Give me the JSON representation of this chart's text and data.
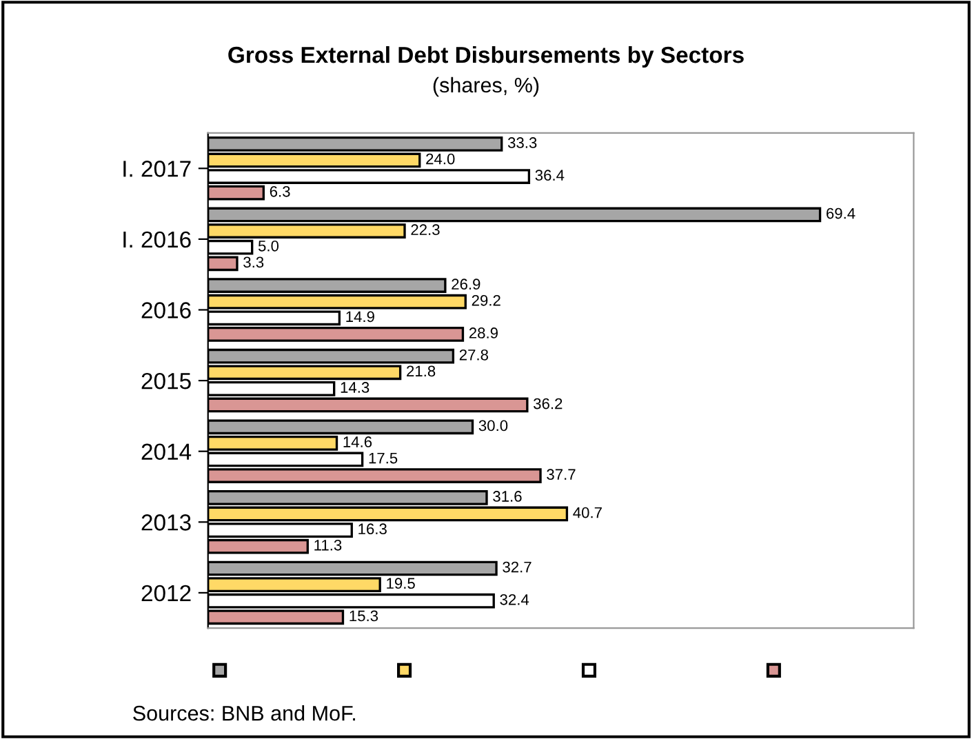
{
  "chart_data": {
    "type": "bar",
    "orientation": "horizontal",
    "title": "Gross External Debt Disbursements by Sectors",
    "subtitle": "(shares, %)",
    "categories": [
      "I. 2017",
      "I. 2016",
      "2016",
      "2015",
      "2014",
      "2013",
      "2012"
    ],
    "series": [
      {
        "color": "#a6a6a6",
        "values": [
          33.3,
          69.4,
          26.9,
          27.8,
          30.0,
          31.6,
          32.7
        ],
        "value_labels": [
          "33.3",
          "69.4",
          "26.9",
          "27.8",
          "30.0",
          "31.6",
          "32.7"
        ]
      },
      {
        "color": "#ffd966",
        "values": [
          24.0,
          22.3,
          29.2,
          21.8,
          14.6,
          40.7,
          19.5
        ],
        "value_labels": [
          "24.0",
          "22.3",
          "29.2",
          "21.8",
          "14.6",
          "40.7",
          "19.5"
        ]
      },
      {
        "color": "#ffffff",
        "values": [
          36.4,
          5.0,
          14.9,
          14.3,
          17.5,
          16.3,
          32.4
        ],
        "value_labels": [
          "36.4",
          "5.0",
          "14.9",
          "14.3",
          "17.5",
          "16.3",
          "32.4"
        ]
      },
      {
        "color": "#d99694",
        "values": [
          6.3,
          3.3,
          28.9,
          36.2,
          37.7,
          11.3,
          15.3
        ],
        "value_labels": [
          "6.3",
          "3.3",
          "28.9",
          "36.2",
          "37.7",
          "11.3",
          "15.3"
        ]
      }
    ],
    "grid": false,
    "annotations": [
      "Sources: BNB and MoF."
    ]
  }
}
